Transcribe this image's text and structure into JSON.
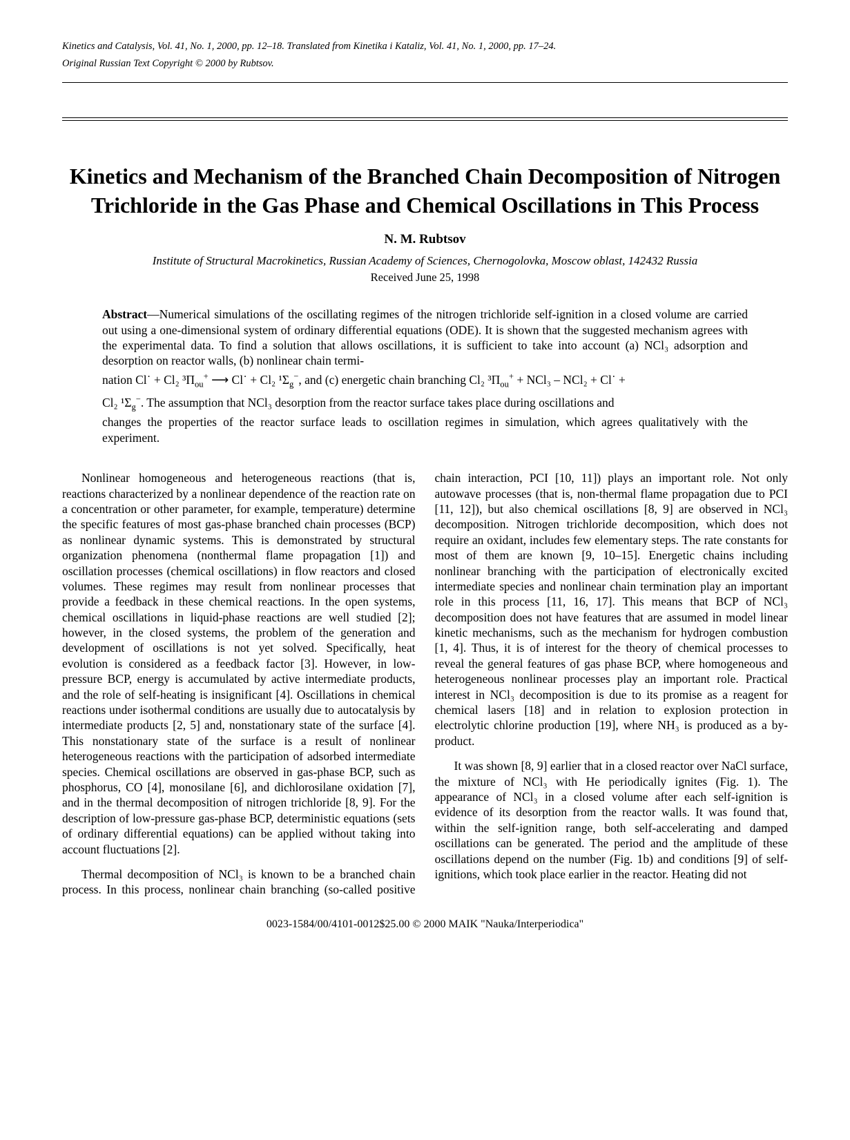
{
  "header": {
    "journal_line": "Kinetics and Catalysis, Vol. 41, No. 1, 2000, pp. 12–18. Translated from Kinetika i Kataliz, Vol. 41, No. 1, 2000, pp. 17–24.",
    "copyright_line": "Original Russian Text Copyright © 2000 by Rubtsov."
  },
  "title": "Kinetics and Mechanism of the Branched Chain Decomposition of Nitrogen Trichloride in the Gas Phase and Chemical Oscillations in This Process",
  "author": "N. M. Rubtsov",
  "affiliation": "Institute of Structural Macrokinetics, Russian Academy of Sciences, Chernogolovka, Moscow oblast, 142432 Russia",
  "received": "Received June 25, 1998",
  "abstract": {
    "label": "Abstract",
    "part1": "—Numerical simulations of the oscillating regimes of the nitrogen trichloride self-ignition in a closed volume are carried out using a one-dimensional system of ordinary differential equations (ODE). It is shown that the suggested mechanism agrees with the experimental data. To find a solution that allows oscillations, it is sufficient to take into account (a) NCl₃ adsorption and desorption on reactor walls, (b) nonlinear chain termi-",
    "eq_prefix": "nation Cl˙ + Cl₂ ",
    "eq_state1a": "³Π",
    "eq_state1a_sub": "ou",
    "eq_state1a_sup": "+",
    "eq_arrow": " ⟶ Cl˙ + Cl₂ ",
    "eq_state1b": "¹Σ",
    "eq_state1b_sub": "g",
    "eq_state1b_sup": "−",
    "eq_mid": ", and (c) energetic chain branching Cl₂ ",
    "eq_state2a": "³Π",
    "eq_state2a_sub": "ou",
    "eq_state2a_sup": "+",
    "eq_plus": " + NCl₃ – NCl₂ + Cl˙ + ",
    "eq_line2_prefix": "Cl₂ ",
    "eq_state2b": "¹Σ",
    "eq_state2b_sub": "g",
    "eq_state2b_sup": "−",
    "part2": ". The assumption that NCl₃ desorption from the reactor surface takes place during oscillations and",
    "part3": "changes the properties of the reactor surface leads to oscillation regimes in simulation, which agrees qualitatively with the experiment."
  },
  "body": {
    "p1": "Nonlinear homogeneous and heterogeneous reactions (that is, reactions characterized by a nonlinear dependence of the reaction rate on a concentration or other parameter, for example, temperature) determine the specific features of most gas-phase branched chain processes (BCP) as nonlinear dynamic systems. This is demonstrated by structural organization phenomena (nonthermal flame propagation [1]) and oscillation processes (chemical oscillations) in flow reactors and closed volumes. These regimes may result from nonlinear processes that provide a feedback in these chemical reactions. In the open systems, chemical oscillations in liquid-phase reactions are well studied [2]; however, in the closed systems, the problem of the generation and development of oscillations is not yet solved. Specifically, heat evolution is considered as a feedback factor [3]. However, in low-pressure BCP, energy is accumulated by active intermediate products, and the role of self-heating is insignificant [4]. Oscillations in chemical reactions under isothermal conditions are usually due to autocatalysis by intermediate products [2, 5] and, nonstationary state of the surface [4]. This nonstationary state of the surface is a result of nonlinear heterogeneous reactions with the participation of adsorbed intermediate species. Chemical oscillations are observed in gas-phase BCP, such as phosphorus, CO [4], monosilane [6], and dichlorosilane oxidation [7], and in the thermal decomposition of nitrogen trichloride [8, 9]. For the description of low-pressure gas-phase BCP, deterministic equations (sets of ordinary differential equations) can be applied without taking into account fluctuations [2].",
    "p2": "Thermal decomposition of NCl₃ is known to be a branched chain process. In this process, nonlinear chain branching (so-called positive chain interaction, PCI [10, 11]) plays an important role. Not only autowave processes (that is, non-thermal flame propagation due to PCI [11, 12]), but also chemical oscillations [8, 9] are observed in NCl₃ decomposition. Nitrogen trichloride decomposition, which does not require an oxidant, includes few elementary steps. The rate constants for most of them are known [9, 10–15]. Energetic chains including nonlinear branching with the participation of electronically excited intermediate species and nonlinear chain termination play an important role in this process [11, 16, 17]. This means that BCP of NCl₃ decomposition does not have features that are assumed in model linear kinetic mechanisms, such as the mechanism for hydrogen combustion [1, 4]. Thus, it is of interest for the theory of chemical processes to reveal the general features of gas phase BCP, where homogeneous and heterogeneous nonlinear processes play an important role. Practical interest in NCl₃ decomposition is due to its promise as a reagent for chemical lasers [18] and in relation to explosion protection in electrolytic chlorine production [19], where NH₃ is produced as a by-product.",
    "p3": "It was shown [8, 9] earlier that in a closed reactor over NaCl surface, the mixture of NCl₃ with He periodically ignites (Fig. 1). The appearance of NCl₃ in a closed volume after each self-ignition is evidence of its desorption from the reactor walls. It was found that, within the self-ignition range, both self-accelerating and damped oscillations can be generated. The period and the amplitude of these oscillations depend on the number (Fig. 1b) and conditions [9] of self-ignitions, which took place earlier in the reactor. Heating did not"
  },
  "footer": "0023-1584/00/4101-0012$25.00 © 2000 MAIK \"Nauka/Interperiodica\""
}
